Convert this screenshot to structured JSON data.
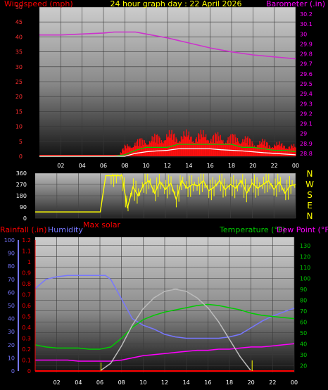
{
  "chart_data": [
    {
      "type": "line",
      "title": "24 hour graph day : 22 April 2026",
      "left_axis_label": "Windspeed (mph)",
      "right_axis_label": "Barometer (.in)",
      "x_ticks": [
        "02",
        "04",
        "06",
        "08",
        "10",
        "12",
        "14",
        "16",
        "18",
        "20",
        "22",
        "00"
      ],
      "left_ylim": [
        0,
        50
      ],
      "left_ticks": [
        0,
        5,
        10,
        15,
        20,
        25,
        30,
        35,
        40,
        45,
        50
      ],
      "right_ylim": [
        28.8,
        30.2
      ],
      "right_ticks": [
        "28.8",
        "28.9",
        "29",
        "29.1",
        "29.2",
        "29.3",
        "29.4",
        "29.5",
        "29.6",
        "29.7",
        "29.8",
        "29.9",
        "30",
        "30.1",
        "30.2"
      ],
      "grid": true,
      "series": [
        {
          "axis": "right",
          "color": "#cc33cc",
          "x": [
            0,
            2,
            4,
            6,
            7,
            8,
            9,
            10,
            12,
            14,
            16,
            18,
            20,
            22,
            24
          ],
          "values": [
            29.99,
            29.99,
            30.0,
            30.01,
            30.02,
            30.02,
            30.02,
            30.0,
            29.96,
            29.91,
            29.86,
            29.82,
            29.79,
            29.77,
            29.75
          ]
        },
        {
          "axis": "left",
          "color": "#ff0000",
          "style": "gust",
          "x": [
            0,
            1,
            2,
            3,
            4,
            5,
            6,
            7,
            7.5,
            8,
            8.5,
            9,
            10,
            11,
            12,
            13,
            14,
            15,
            16,
            17,
            18,
            19,
            20,
            21,
            22,
            23,
            24
          ],
          "values": [
            0,
            0,
            0,
            0,
            0,
            0,
            0,
            0,
            1,
            4,
            5,
            6,
            7,
            8,
            9,
            9,
            9,
            9,
            9,
            8,
            8,
            8,
            6,
            6,
            5,
            5,
            4
          ]
        },
        {
          "axis": "left",
          "color": "#00cc00",
          "style": "average",
          "x": [
            0,
            6,
            7,
            8,
            9,
            10,
            11,
            12,
            13,
            14,
            15,
            16,
            17,
            18,
            19,
            20,
            21,
            22,
            23,
            24
          ],
          "values": [
            0,
            0,
            0,
            0.5,
            2,
            3,
            3,
            3,
            4,
            4,
            4,
            4,
            4,
            4,
            3,
            3,
            2.5,
            2,
            2,
            1.5
          ]
        },
        {
          "axis": "left",
          "color": "#ffffff",
          "style": "speed",
          "x": [
            0,
            8,
            9,
            10,
            11,
            12,
            13,
            14,
            15,
            16,
            17,
            18,
            19,
            20,
            21,
            22,
            24
          ],
          "values": [
            0,
            0,
            1,
            1.5,
            1.8,
            2,
            2.5,
            2.5,
            2.5,
            2.5,
            2.2,
            2,
            1.8,
            1.5,
            1.2,
            1,
            0.5
          ]
        }
      ]
    },
    {
      "type": "line",
      "title": "",
      "ylim": [
        0,
        360
      ],
      "y_ticks": [
        0,
        90,
        180,
        270,
        360
      ],
      "direction_labels": [
        "N",
        "W",
        "S",
        "E",
        "N"
      ],
      "x_ticks": [
        "02",
        "04",
        "06",
        "08",
        "10",
        "12",
        "14",
        "16",
        "18",
        "20",
        "22",
        "00"
      ],
      "series": [
        {
          "name": "Wind direction",
          "color": "#ffff00",
          "x": [
            0,
            0.5,
            1,
            1.5,
            2,
            2.5,
            3,
            3.5,
            4,
            4.5,
            5,
            5.5,
            6,
            6.5,
            7,
            7.5,
            8,
            8.5,
            9,
            9.5,
            10,
            10.5,
            11,
            11.5,
            12,
            12.5,
            13,
            13.5,
            14,
            14.5,
            15,
            15.5,
            16,
            16.5,
            17,
            17.5,
            18,
            18.5,
            19,
            19.5,
            20,
            20.5,
            21,
            21.5,
            22,
            22.5,
            23,
            23.5,
            24
          ],
          "values": [
            50,
            50,
            50,
            50,
            50,
            50,
            50,
            50,
            50,
            50,
            50,
            50,
            50,
            340,
            340,
            340,
            340,
            80,
            250,
            180,
            270,
            300,
            200,
            290,
            230,
            280,
            150,
            300,
            240,
            270,
            260,
            300,
            220,
            250,
            300,
            230,
            270,
            240,
            300,
            200,
            280,
            240,
            270,
            300,
            230,
            290,
            200,
            260,
            270
          ]
        }
      ]
    },
    {
      "type": "line",
      "title": "",
      "left_label_rain": "Rainfall (.in)",
      "left_label_humidity": "Humidity",
      "legend_solar": "Max solar",
      "right_label_temp": "Temperature (°F)",
      "right_label_dew": "Dew Point (°F)",
      "x_ticks": [
        "02",
        "04",
        "06",
        "08",
        "10",
        "12",
        "14",
        "16",
        "18",
        "20",
        "22",
        "00"
      ],
      "rain_ylim": [
        0,
        1.2
      ],
      "rain_ticks": [
        "0",
        "0.1",
        "0.2",
        "0.3",
        "0.4",
        "0.5",
        "0.6",
        "0.7",
        "0.8",
        "0.9",
        "1",
        "1.1",
        "1.2"
      ],
      "humidity_ylim": [
        0,
        100
      ],
      "humidity_ticks": [
        0,
        10,
        20,
        30,
        40,
        50,
        60,
        70,
        80,
        90,
        100
      ],
      "temp_ylim": [
        15,
        135
      ],
      "temp_ticks": [
        20,
        30,
        40,
        50,
        60,
        70,
        80,
        90,
        100,
        110,
        120,
        130
      ],
      "grid": true,
      "series": [
        {
          "axis": "humidity",
          "color": "#7777ff",
          "x": [
            0,
            1,
            2,
            3,
            4,
            5,
            6,
            6.5,
            7,
            8,
            9,
            10,
            11,
            12,
            13,
            14,
            15,
            16,
            17,
            18,
            19,
            20,
            21,
            22,
            23,
            24
          ],
          "values": [
            63,
            70,
            72,
            73,
            73,
            73,
            73,
            73,
            70,
            55,
            40,
            35,
            32,
            28,
            26,
            25,
            25,
            25,
            25,
            26,
            28,
            33,
            38,
            42,
            45,
            48
          ]
        },
        {
          "axis": "temp",
          "color": "#00cc00",
          "x": [
            0,
            1,
            2,
            3,
            4,
            5,
            6,
            7,
            8,
            9,
            10,
            11,
            12,
            13,
            14,
            15,
            16,
            17,
            18,
            19,
            20,
            21,
            22,
            23,
            24
          ],
          "values": [
            39,
            37,
            36,
            36,
            36,
            35,
            35,
            37,
            45,
            55,
            62,
            66,
            69,
            71,
            73,
            75,
            76,
            75,
            73,
            71,
            68,
            66,
            65,
            64,
            63
          ]
        },
        {
          "axis": "temp",
          "color": "#ff00ff",
          "x": [
            0,
            1,
            2,
            3,
            4,
            5,
            6,
            7,
            8,
            9,
            10,
            11,
            12,
            13,
            14,
            15,
            16,
            17,
            18,
            19,
            20,
            21,
            22,
            23,
            24
          ],
          "values": [
            25,
            25,
            25,
            25,
            24,
            24,
            24,
            24,
            25,
            27,
            29,
            30,
            31,
            32,
            33,
            34,
            34,
            35,
            35,
            36,
            37,
            37,
            38,
            39,
            40
          ]
        },
        {
          "axis": "temp",
          "color": "#bbbbbb",
          "x": [
            0,
            6,
            7,
            8,
            9,
            10,
            11,
            12,
            13,
            14,
            15,
            16,
            17,
            18,
            19,
            20,
            24
          ],
          "values": [
            15,
            15,
            22,
            38,
            57,
            72,
            82,
            88,
            90,
            88,
            82,
            73,
            60,
            44,
            28,
            15,
            15
          ]
        },
        {
          "axis": "rain",
          "color": "#ff0000",
          "x": [
            0,
            24
          ],
          "values": [
            0,
            0
          ]
        }
      ]
    }
  ]
}
